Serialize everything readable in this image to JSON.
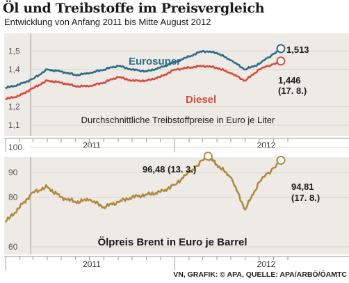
{
  "title": "Öl und Treibstoffe im Preisvergleich",
  "subtitle": "Entwicklung von Anfang 2011 bis Mitte August 2012",
  "source": "VN, GRAFIK: © APA, QUELLE: APA/ARBÖ/ÖAMTC",
  "colors": {
    "eurosuper": "#2e6b87",
    "diesel": "#d94a3d",
    "brent": "#b08a3e",
    "panel": "#eeebe6",
    "text": "#1a1a1a"
  },
  "chart_data": [
    {
      "type": "line",
      "title": "Durchschnittliche Treibstoffpreise in Euro je Liter",
      "xlabel": "",
      "ylabel": "",
      "x_ticks": [
        "2011",
        "2012"
      ],
      "yticks": [
        "1,1",
        "1,2",
        "1,4",
        "1,5"
      ],
      "ylim": [
        1.1,
        1.55
      ],
      "x": [
        "2011-01-01",
        "2011-02-01",
        "2011-03-01",
        "2011-04-01",
        "2011-05-01",
        "2011-06-01",
        "2011-07-01",
        "2011-08-01",
        "2011-09-01",
        "2011-10-01",
        "2011-11-01",
        "2011-12-01",
        "2012-01-01",
        "2012-02-01",
        "2012-03-01",
        "2012-04-01",
        "2012-05-01",
        "2012-06-01",
        "2012-07-01",
        "2012-08-17"
      ],
      "series": [
        {
          "name": "Eurosuper",
          "values": [
            1.3,
            1.32,
            1.35,
            1.4,
            1.39,
            1.37,
            1.38,
            1.4,
            1.42,
            1.4,
            1.39,
            1.41,
            1.44,
            1.47,
            1.5,
            1.49,
            1.45,
            1.4,
            1.43,
            1.513
          ]
        },
        {
          "name": "Diesel",
          "values": [
            1.24,
            1.26,
            1.3,
            1.34,
            1.33,
            1.31,
            1.31,
            1.33,
            1.36,
            1.34,
            1.34,
            1.36,
            1.4,
            1.41,
            1.42,
            1.41,
            1.38,
            1.34,
            1.4,
            1.446
          ]
        }
      ],
      "annotations": [
        {
          "series": "Eurosuper",
          "text": "1,513"
        },
        {
          "series": "Diesel",
          "text": "1,446",
          "date_label": "(17. 8.)"
        }
      ]
    },
    {
      "type": "line",
      "title": "Ölpreis Brent in Euro je Barrel",
      "xlabel": "",
      "ylabel": "",
      "x_ticks": [
        "2011",
        "2012"
      ],
      "yticks": [
        "60",
        "80",
        "90",
        "100"
      ],
      "ylim": [
        60,
        100
      ],
      "x": [
        "2011-01-01",
        "2011-02-01",
        "2011-03-01",
        "2011-04-01",
        "2011-05-01",
        "2011-06-01",
        "2011-07-01",
        "2011-08-01",
        "2011-09-01",
        "2011-10-01",
        "2011-11-01",
        "2011-12-01",
        "2012-01-01",
        "2012-02-01",
        "2012-03-13",
        "2012-04-01",
        "2012-05-01",
        "2012-06-01",
        "2012-07-01",
        "2012-08-17"
      ],
      "series": [
        {
          "name": "Brent",
          "values": [
            70,
            76,
            82,
            84,
            80,
            78,
            79,
            76,
            78,
            80,
            81,
            82,
            85,
            90,
            96.48,
            93,
            88,
            75,
            86,
            94.81
          ]
        }
      ],
      "annotations": [
        {
          "text": "96,48 (13. 3.)"
        },
        {
          "text": "94,81",
          "date_label": "(17. 8.)"
        }
      ]
    }
  ]
}
